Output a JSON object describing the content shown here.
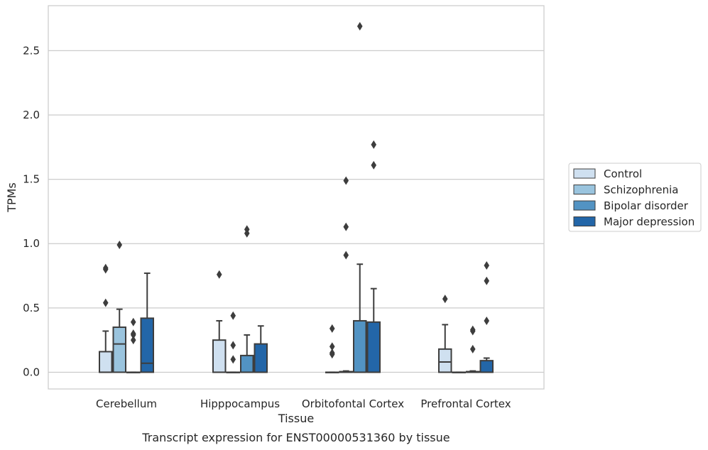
{
  "chart_data": {
    "type": "box",
    "title": "",
    "caption": "Transcript expression for ENST00000531360 by tissue",
    "xlabel": "Tissue",
    "ylabel": "TPMs",
    "ylim": [
      -0.13,
      2.85
    ],
    "yticks": [
      "0.0",
      "0.5",
      "1.0",
      "1.5",
      "2.0",
      "2.5"
    ],
    "ytick_values": [
      0.0,
      0.5,
      1.0,
      1.5,
      2.0,
      2.5
    ],
    "grid": true,
    "legend_position": "right",
    "categories": [
      "Cerebellum",
      "Hipppocampus",
      "Orbitofontal Cortex",
      "Prefrontal Cortex"
    ],
    "series": [
      {
        "name": "Control",
        "color": "#cfe0f0",
        "boxes": [
          {
            "min": 0.0,
            "q1": 0.0,
            "median": 0.0,
            "q3": 0.16,
            "max": 0.32,
            "outliers": [
              0.54,
              0.8,
              0.81
            ]
          },
          {
            "min": 0.0,
            "q1": 0.0,
            "median": 0.0,
            "q3": 0.25,
            "max": 0.4,
            "outliers": [
              0.76
            ]
          },
          {
            "min": 0.0,
            "q1": 0.0,
            "median": 0.0,
            "q3": 0.0,
            "max": 0.0,
            "outliers": [
              0.14,
              0.15,
              0.2,
              0.34
            ]
          },
          {
            "min": 0.0,
            "q1": 0.0,
            "median": 0.08,
            "q3": 0.18,
            "max": 0.37,
            "outliers": [
              0.57
            ]
          }
        ]
      },
      {
        "name": "Schizophrenia",
        "color": "#9ac4de",
        "boxes": [
          {
            "min": 0.0,
            "q1": 0.0,
            "median": 0.22,
            "q3": 0.35,
            "max": 0.49,
            "outliers": [
              0.99
            ]
          },
          {
            "min": 0.0,
            "q1": 0.0,
            "median": 0.0,
            "q3": 0.0,
            "max": 0.0,
            "outliers": [
              0.1,
              0.21,
              0.44
            ]
          },
          {
            "min": 0.0,
            "q1": 0.0,
            "median": 0.0,
            "q3": 0.005,
            "max": 0.01,
            "outliers": [
              0.91,
              1.13,
              1.49
            ]
          },
          {
            "min": 0.0,
            "q1": 0.0,
            "median": 0.0,
            "q3": 0.0,
            "max": 0.0,
            "outliers": []
          }
        ]
      },
      {
        "name": "Bipolar disorder",
        "color": "#5293c3",
        "boxes": [
          {
            "min": 0.0,
            "q1": 0.0,
            "median": 0.0,
            "q3": 0.0,
            "max": 0.0,
            "outliers": [
              0.25,
              0.29,
              0.3,
              0.39
            ]
          },
          {
            "min": 0.0,
            "q1": 0.0,
            "median": 0.0,
            "q3": 0.13,
            "max": 0.29,
            "outliers": [
              1.08,
              1.11
            ]
          },
          {
            "min": 0.0,
            "q1": 0.0,
            "median": 0.0,
            "q3": 0.4,
            "max": 0.84,
            "outliers": [
              2.69
            ]
          },
          {
            "min": 0.0,
            "q1": 0.0,
            "median": 0.0,
            "q3": 0.005,
            "max": 0.01,
            "outliers": [
              0.18,
              0.32,
              0.33
            ]
          }
        ]
      },
      {
        "name": "Major depression",
        "color": "#2366a8",
        "boxes": [
          {
            "min": 0.0,
            "q1": 0.0,
            "median": 0.07,
            "q3": 0.42,
            "max": 0.77,
            "outliers": []
          },
          {
            "min": 0.0,
            "q1": 0.0,
            "median": 0.0,
            "q3": 0.22,
            "max": 0.36,
            "outliers": []
          },
          {
            "min": 0.0,
            "q1": 0.0,
            "median": 0.0,
            "q3": 0.39,
            "max": 0.65,
            "outliers": [
              1.61,
              1.77
            ]
          },
          {
            "min": 0.0,
            "q1": 0.0,
            "median": 0.0,
            "q3": 0.09,
            "max": 0.11,
            "outliers": [
              0.4,
              0.71,
              0.83
            ]
          }
        ]
      }
    ]
  }
}
